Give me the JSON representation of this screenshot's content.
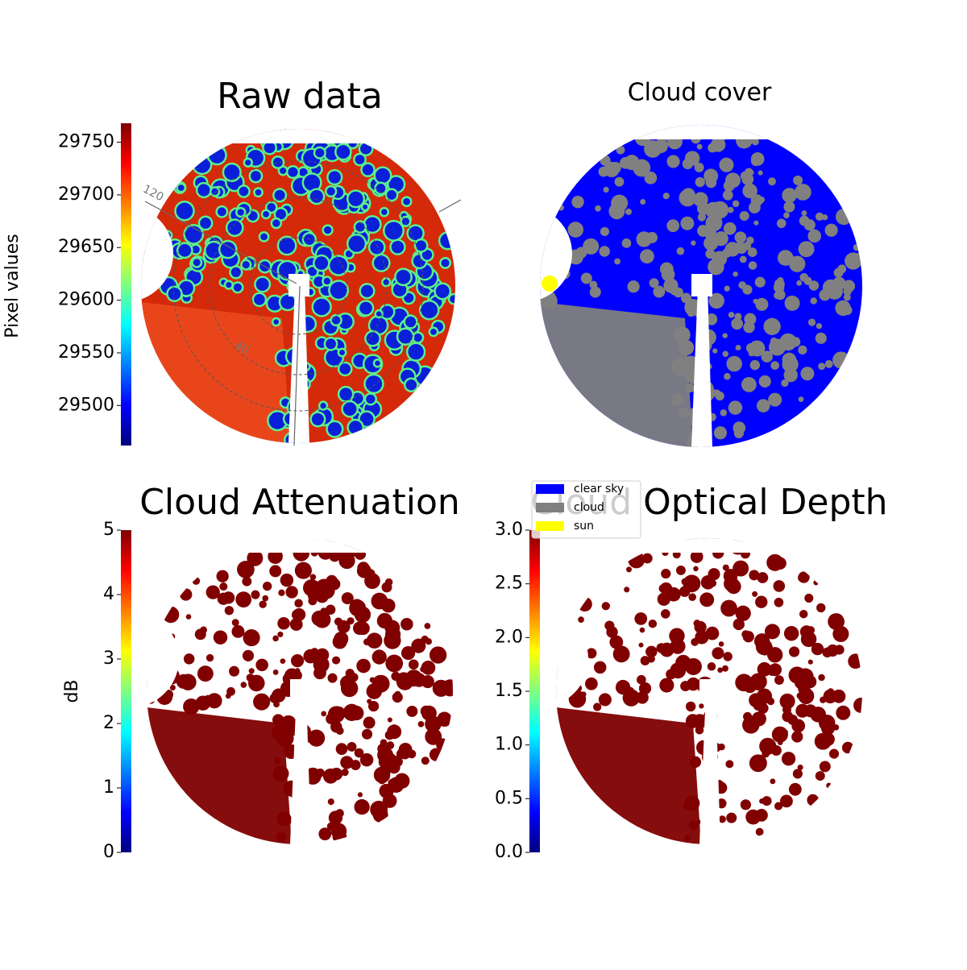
{
  "chart_data": [
    {
      "type": "image",
      "title": "Raw data",
      "colorbar_label": "Pixel values",
      "ylim": [
        29462,
        29768
      ],
      "yticks": [
        29500,
        29550,
        29600,
        29650,
        29700,
        29750
      ],
      "annotations": [
        "120",
        "40"
      ]
    },
    {
      "type": "categorical-image",
      "title": "Cloud cover",
      "series": [
        {
          "name": "clear sky",
          "color": "#0000ff"
        },
        {
          "name": "cloud",
          "color": "#808080"
        },
        {
          "name": "sun",
          "color": "#ffff00"
        }
      ]
    },
    {
      "type": "image",
      "title": "Cloud Attenuation",
      "colorbar_label": "dB",
      "ylim": [
        0,
        5
      ],
      "yticks": [
        0,
        1,
        2,
        3,
        4,
        5
      ]
    },
    {
      "type": "image",
      "title": "Cloud Optical Depth",
      "ylim": [
        0,
        3
      ],
      "yticks": [
        {
          "value": 0,
          "label": "0.0"
        },
        {
          "value": 0.5,
          "label": "0.5"
        },
        {
          "value": 1,
          "label": "1.0"
        },
        {
          "value": 1.5,
          "label": "1.5"
        },
        {
          "value": 2,
          "label": "2.0"
        },
        {
          "value": 2.5,
          "label": "2.5"
        },
        {
          "value": 3,
          "label": "3.0"
        }
      ]
    }
  ]
}
